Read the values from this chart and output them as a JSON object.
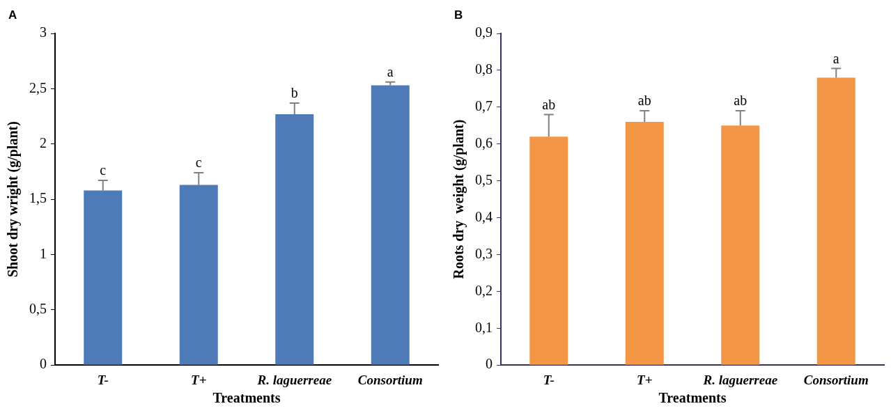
{
  "chart_data": [
    {
      "type": "bar",
      "title": "A",
      "xlabel": "Treatments",
      "ylabel": "Shoot dry wright (g/plant)",
      "categories": [
        "T-",
        "T+",
        "R. laguerreae",
        "Consortium"
      ],
      "values": [
        1.58,
        1.63,
        2.27,
        2.53
      ],
      "color": "#4e7bb8",
      "errors": [
        [
          1.58,
          1.67
        ],
        [
          1.63,
          1.74
        ],
        [
          2.27,
          2.37
        ],
        [
          2.53,
          2.56
        ]
      ],
      "ylim": [
        0,
        3
      ],
      "yticks": [
        0,
        {
          "value": 0.5,
          "label": "0,5"
        },
        1,
        {
          "value": 1.5,
          "label": "1,5"
        },
        2,
        {
          "value": 2.5,
          "label": "2,5"
        },
        3
      ],
      "annotations": [
        {
          "text": "c",
          "x": "T-",
          "y": 1.67
        },
        {
          "text": "c",
          "x": "T+",
          "y": 1.74
        },
        {
          "text": "b",
          "x": "R. laguerreae",
          "y": 2.37
        },
        {
          "text": "a",
          "x": "Consortium",
          "y": 2.56
        }
      ]
    },
    {
      "type": "bar",
      "title": "B",
      "xlabel": "Treatments",
      "ylabel": "Roots dry  weight (g/plant)",
      "categories": [
        "T-",
        "T+",
        "R. laguerreae",
        "Consortium"
      ],
      "values": [
        0.62,
        0.66,
        0.65,
        0.78
      ],
      "color": "#f39646",
      "errors": [
        [
          0.62,
          0.68
        ],
        [
          0.66,
          0.69
        ],
        [
          0.65,
          0.69
        ],
        [
          0.78,
          0.805
        ]
      ],
      "ylim": [
        0,
        0.9
      ],
      "yticks": [
        0,
        {
          "value": 0.1,
          "label": "0,1"
        },
        {
          "value": 0.2,
          "label": "0,2"
        },
        {
          "value": 0.3,
          "label": "0,3"
        },
        {
          "value": 0.4,
          "label": "0,4"
        },
        {
          "value": 0.5,
          "label": "0,5"
        },
        {
          "value": 0.6,
          "label": "0,6"
        },
        {
          "value": 0.7,
          "label": "0,7"
        },
        {
          "value": 0.8,
          "label": "0,8"
        },
        {
          "value": 0.9,
          "label": "0,9"
        }
      ],
      "annotations": [
        {
          "text": "ab",
          "x": "T-",
          "y": 0.68
        },
        {
          "text": "ab",
          "x": "T+",
          "y": 0.69
        },
        {
          "text": "ab",
          "x": "R. laguerreae",
          "y": 0.69
        },
        {
          "text": "a",
          "x": "Consortium",
          "y": 0.805
        }
      ]
    }
  ]
}
